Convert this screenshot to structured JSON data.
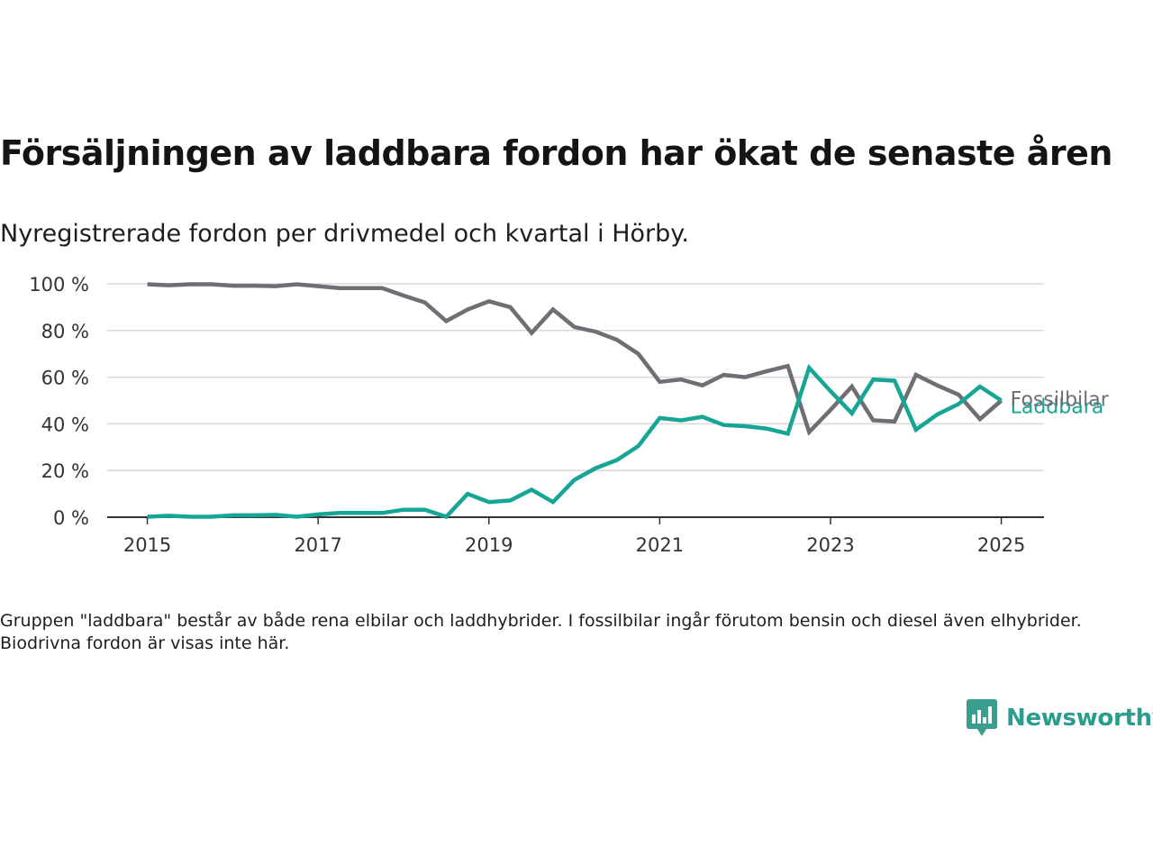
{
  "title": "Försäljningen av laddbara fordon har ökat de senaste åren",
  "subtitle": "Nyregistrerade fordon per drivmedel och kvartal i Hörby.",
  "note": "Gruppen \"laddbara\" består av både rena elbilar och laddhybrider. I fossilbilar ingår förutom bensin och diesel även elhybrider. Biodrivna fordon är visas inte här.",
  "brand": {
    "name": "Newsworthy",
    "icon": "newsworthy-logo-icon",
    "color": "#3a9e8f"
  },
  "chart_data": {
    "type": "line",
    "title": "Försäljningen av laddbara fordon har ökat de senaste åren",
    "subtitle": "Nyregistrerade fordon per drivmedel och kvartal i Hörby.",
    "xlabel": "",
    "ylabel": "",
    "xlim": [
      2014.53,
      2025.5
    ],
    "ylim": [
      0,
      100
    ],
    "x_ticks": [
      2015,
      2017,
      2019,
      2021,
      2023,
      2025
    ],
    "y_ticks": [
      {
        "value": 0,
        "label": "0 %"
      },
      {
        "value": 20,
        "label": "20 %"
      },
      {
        "value": 40,
        "label": "40 %"
      },
      {
        "value": 60,
        "label": "60 %"
      },
      {
        "value": 80,
        "label": "80 %"
      },
      {
        "value": 100,
        "label": "100 %"
      }
    ],
    "grid": true,
    "legend": "end-of-line labels",
    "x": [
      2015.0,
      2015.25,
      2015.5,
      2015.75,
      2016.0,
      2016.25,
      2016.5,
      2016.75,
      2017.0,
      2017.25,
      2017.5,
      2017.75,
      2018.0,
      2018.25,
      2018.5,
      2018.75,
      2019.0,
      2019.25,
      2019.5,
      2019.75,
      2020.0,
      2020.25,
      2020.5,
      2020.75,
      2021.0,
      2021.25,
      2021.5,
      2021.75,
      2022.0,
      2022.25,
      2022.5,
      2022.75,
      2023.0,
      2023.25,
      2023.5,
      2023.75,
      2024.0,
      2024.25,
      2024.5,
      2024.75,
      2025.0
    ],
    "series": [
      {
        "name": "Fossilbilar",
        "color": "#6e6e74",
        "values": [
          99.8,
          99.4,
          99.8,
          99.8,
          99.2,
          99.2,
          99.0,
          99.8,
          99.0,
          98.2,
          98.2,
          98.2,
          95.0,
          92.0,
          84.0,
          89.0,
          92.5,
          90.0,
          79.0,
          89.0,
          81.5,
          79.5,
          76.0,
          70.0,
          58.0,
          59.0,
          56.5,
          61.0,
          60.0,
          62.5,
          64.8,
          36.5,
          46.0,
          56.0,
          41.5,
          41.0,
          61.0,
          56.5,
          52.5,
          42.0,
          50.0
        ]
      },
      {
        "name": "Laddbara",
        "color": "#17a595",
        "values": [
          0.2,
          0.6,
          0.2,
          0.2,
          0.8,
          0.8,
          1.0,
          0.2,
          1.2,
          1.8,
          1.8,
          1.8,
          3.2,
          3.2,
          0.2,
          10.0,
          6.5,
          7.2,
          11.8,
          6.5,
          16.0,
          21.0,
          24.5,
          30.5,
          42.5,
          41.5,
          43.0,
          39.5,
          39.0,
          38.0,
          35.8,
          64.0,
          54.0,
          44.5,
          59.0,
          58.5,
          37.5,
          44.0,
          48.5,
          56.0,
          50.0
        ]
      }
    ]
  }
}
